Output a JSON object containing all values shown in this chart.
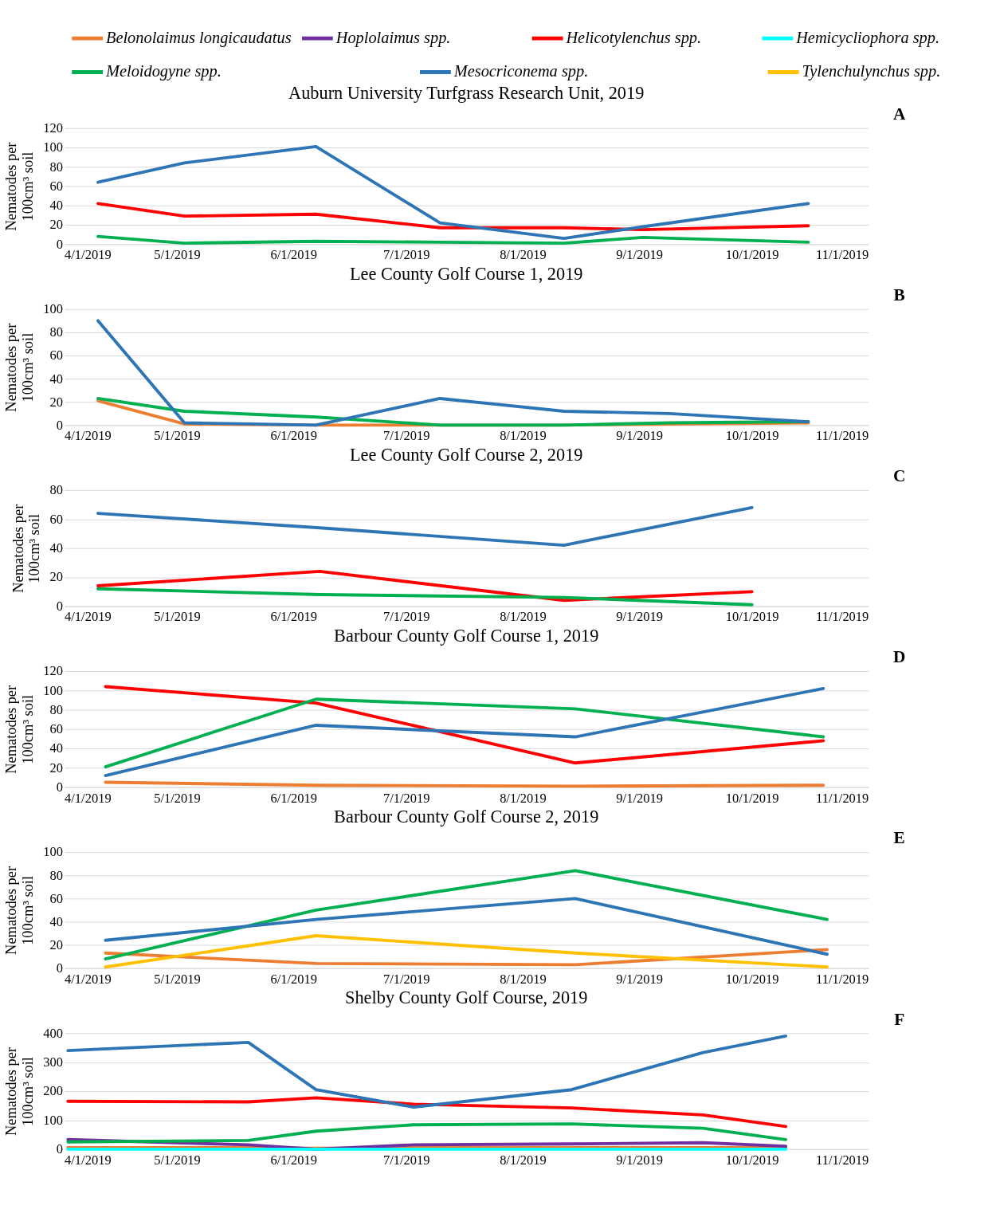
{
  "chart_data": [
    {
      "type": "line",
      "title": "Auburn University Turfgrass Research Unit, 2019",
      "ylabel": "Nematodes per 100cm³ soil",
      "annotations": [
        "A"
      ],
      "legend": "top",
      "grid": "y",
      "xlim": [
        "2019-04-01",
        "2019-11-01"
      ],
      "xticks": [
        {
          "value": "2019-04-01",
          "label": "4/1/2019"
        },
        {
          "value": "2019-05-01",
          "label": "5/1/2019"
        },
        {
          "value": "2019-06-01",
          "label": "6/1/2019"
        },
        {
          "value": "2019-07-01",
          "label": "7/1/2019"
        },
        {
          "value": "2019-08-01",
          "label": "8/1/2019"
        },
        {
          "value": "2019-09-01",
          "label": "9/1/2019"
        },
        {
          "value": "2019-10-01",
          "label": "10/1/2019"
        },
        {
          "value": "2019-11-01",
          "label": "11/1/2019"
        }
      ],
      "ylim": [
        0,
        120
      ],
      "yticks": [
        0,
        20,
        40,
        60,
        80,
        100,
        120
      ],
      "x": [
        "2019-04-10",
        "2019-05-03",
        "2019-06-07",
        "2019-07-10",
        "2019-08-12",
        "2019-09-02",
        "2019-10-16"
      ],
      "series": [
        {
          "name": "Helicotylenchus spp.",
          "color": "#ff0000",
          "values": [
            42,
            29,
            31,
            17,
            17,
            15,
            19
          ]
        },
        {
          "name": "Meloidogyne spp.",
          "color": "#00b050",
          "values": [
            8,
            1,
            3,
            2,
            1,
            7,
            2
          ]
        },
        {
          "name": "Mesocriconema spp.",
          "color": "#2e75b6",
          "values": [
            64,
            84,
            101,
            22,
            6,
            18,
            42
          ]
        }
      ]
    },
    {
      "type": "line",
      "title": "Lee County Golf Course 1, 2019",
      "ylabel": "Nematodes per 100cm³ soil",
      "annotations": [
        "B"
      ],
      "legend": "top",
      "grid": "y",
      "xlim": [
        "2019-04-01",
        "2019-11-01"
      ],
      "xticks": [
        {
          "value": "2019-04-01",
          "label": "4/1/2019"
        },
        {
          "value": "2019-05-01",
          "label": "5/1/2019"
        },
        {
          "value": "2019-06-01",
          "label": "6/1/2019"
        },
        {
          "value": "2019-07-01",
          "label": "7/1/2019"
        },
        {
          "value": "2019-08-01",
          "label": "8/1/2019"
        },
        {
          "value": "2019-09-01",
          "label": "9/1/2019"
        },
        {
          "value": "2019-10-01",
          "label": "10/1/2019"
        },
        {
          "value": "2019-11-01",
          "label": "11/1/2019"
        }
      ],
      "ylim": [
        0,
        100
      ],
      "yticks": [
        0,
        20,
        40,
        60,
        80,
        100
      ],
      "x": [
        "2019-04-10",
        "2019-05-03",
        "2019-06-07",
        "2019-07-10",
        "2019-08-12",
        "2019-09-09",
        "2019-10-16"
      ],
      "series": [
        {
          "name": "Belonolaimus longicaudatus",
          "color": "#ed7d31",
          "values": [
            21,
            1,
            0,
            0,
            0,
            1,
            2
          ]
        },
        {
          "name": "Meloidogyne spp.",
          "color": "#00b050",
          "values": [
            23,
            12,
            7,
            0,
            0,
            2,
            3
          ]
        },
        {
          "name": "Mesocriconema spp.",
          "color": "#2e75b6",
          "values": [
            90,
            2,
            0,
            23,
            12,
            10,
            3
          ]
        }
      ]
    },
    {
      "type": "line",
      "title": "Lee County Golf Course 2, 2019",
      "ylabel": "Nematodes per 100cm³ soil",
      "annotations": [
        "C"
      ],
      "legend": "top",
      "grid": "y",
      "xlim": [
        "2019-04-01",
        "2019-11-01"
      ],
      "xticks": [
        {
          "value": "2019-04-01",
          "label": "4/1/2019"
        },
        {
          "value": "2019-05-01",
          "label": "5/1/2019"
        },
        {
          "value": "2019-06-01",
          "label": "6/1/2019"
        },
        {
          "value": "2019-07-01",
          "label": "7/1/2019"
        },
        {
          "value": "2019-08-01",
          "label": "8/1/2019"
        },
        {
          "value": "2019-09-01",
          "label": "9/1/2019"
        },
        {
          "value": "2019-10-01",
          "label": "10/1/2019"
        },
        {
          "value": "2019-11-01",
          "label": "11/1/2019"
        }
      ],
      "ylim": [
        0,
        80
      ],
      "yticks": [
        0,
        20,
        40,
        60,
        80
      ],
      "x": [
        "2019-04-10",
        "2019-06-08",
        "2019-08-12",
        "2019-10-01"
      ],
      "series": [
        {
          "name": "Helicotylenchus spp.",
          "color": "#ff0000",
          "values": [
            14,
            24,
            4,
            10
          ]
        },
        {
          "name": "Meloidogyne spp.",
          "color": "#00b050",
          "values": [
            12,
            8,
            6,
            1
          ]
        },
        {
          "name": "Mesocriconema spp.",
          "color": "#2e75b6",
          "values": [
            64,
            54,
            42,
            68
          ]
        }
      ]
    },
    {
      "type": "line",
      "title": "Barbour County Golf Course 1, 2019",
      "ylabel": "Nematodes per 100cm³ soil",
      "annotations": [
        "D"
      ],
      "legend": "top",
      "grid": "y",
      "xlim": [
        "2019-04-01",
        "2019-11-01"
      ],
      "xticks": [
        {
          "value": "2019-04-01",
          "label": "4/1/2019"
        },
        {
          "value": "2019-05-01",
          "label": "5/1/2019"
        },
        {
          "value": "2019-06-01",
          "label": "6/1/2019"
        },
        {
          "value": "2019-07-01",
          "label": "7/1/2019"
        },
        {
          "value": "2019-08-01",
          "label": "8/1/2019"
        },
        {
          "value": "2019-09-01",
          "label": "9/1/2019"
        },
        {
          "value": "2019-10-01",
          "label": "10/1/2019"
        },
        {
          "value": "2019-11-01",
          "label": "11/1/2019"
        }
      ],
      "ylim": [
        0,
        120
      ],
      "yticks": [
        0,
        20,
        40,
        60,
        80,
        100,
        120
      ],
      "x": [
        "2019-04-12",
        "2019-06-07",
        "2019-08-15",
        "2019-10-20"
      ],
      "series": [
        {
          "name": "Belonolaimus longicaudatus",
          "color": "#ed7d31",
          "values": [
            5,
            2,
            1,
            2
          ]
        },
        {
          "name": "Helicotylenchus spp.",
          "color": "#ff0000",
          "values": [
            104,
            87,
            25,
            48
          ]
        },
        {
          "name": "Meloidogyne spp.",
          "color": "#00b050",
          "values": [
            21,
            91,
            81,
            52
          ]
        },
        {
          "name": "Mesocriconema spp.",
          "color": "#2e75b6",
          "values": [
            12,
            64,
            52,
            102
          ]
        }
      ]
    },
    {
      "type": "line",
      "title": "Barbour County Golf Course 2, 2019",
      "ylabel": "Nematodes per 100cm³ soil",
      "annotations": [
        "E"
      ],
      "legend": "top",
      "grid": "y",
      "xlim": [
        "2019-04-01",
        "2019-11-01"
      ],
      "xticks": [
        {
          "value": "2019-04-01",
          "label": "4/1/2019"
        },
        {
          "value": "2019-05-01",
          "label": "5/1/2019"
        },
        {
          "value": "2019-06-01",
          "label": "6/1/2019"
        },
        {
          "value": "2019-07-01",
          "label": "7/1/2019"
        },
        {
          "value": "2019-08-01",
          "label": "8/1/2019"
        },
        {
          "value": "2019-09-01",
          "label": "9/1/2019"
        },
        {
          "value": "2019-10-01",
          "label": "10/1/2019"
        },
        {
          "value": "2019-11-01",
          "label": "11/1/2019"
        }
      ],
      "ylim": [
        0,
        100
      ],
      "yticks": [
        0,
        20,
        40,
        60,
        80,
        100
      ],
      "x": [
        "2019-04-12",
        "2019-06-07",
        "2019-08-15",
        "2019-10-21"
      ],
      "series": [
        {
          "name": "Belonolaimus longicaudatus",
          "color": "#ed7d31",
          "values": [
            13,
            4,
            3,
            16
          ]
        },
        {
          "name": "Meloidogyne spp.",
          "color": "#00b050",
          "values": [
            8,
            50,
            84,
            42
          ]
        },
        {
          "name": "Mesocriconema spp.",
          "color": "#2e75b6",
          "values": [
            24,
            42,
            60,
            12
          ]
        },
        {
          "name": "Tylenchulynchus spp.",
          "color": "#ffc000",
          "values": [
            1,
            28,
            13,
            1
          ]
        }
      ]
    },
    {
      "type": "line",
      "title": "Shelby County Golf Course, 2019",
      "ylabel": "Nematodes per 100cm³ soil",
      "annotations": [
        "F"
      ],
      "legend": "top",
      "grid": "y",
      "xlim": [
        "2019-04-01",
        "2019-11-01"
      ],
      "xticks": [
        {
          "value": "2019-04-01",
          "label": "4/1/2019"
        },
        {
          "value": "2019-05-01",
          "label": "5/1/2019"
        },
        {
          "value": "2019-06-01",
          "label": "6/1/2019"
        },
        {
          "value": "2019-07-01",
          "label": "7/1/2019"
        },
        {
          "value": "2019-08-01",
          "label": "8/1/2019"
        },
        {
          "value": "2019-09-01",
          "label": "9/1/2019"
        },
        {
          "value": "2019-10-01",
          "label": "10/1/2019"
        },
        {
          "value": "2019-11-01",
          "label": "11/1/2019"
        }
      ],
      "ylim": [
        0,
        400
      ],
      "yticks": [
        0,
        100,
        200,
        300,
        400
      ],
      "x": [
        "2019-04-02",
        "2019-05-20",
        "2019-06-07",
        "2019-07-03",
        "2019-08-14",
        "2019-09-18",
        "2019-10-10"
      ],
      "series": [
        {
          "name": "Belonolaimus longicaudatus",
          "color": "#ed7d31",
          "values": [
            5,
            5,
            3,
            5,
            5,
            5,
            5
          ]
        },
        {
          "name": "Hoplolaimus spp.",
          "color": "#7030a0",
          "values": [
            33,
            15,
            0,
            15,
            18,
            22,
            10
          ]
        },
        {
          "name": "Helicotylenchus spp.",
          "color": "#ff0000",
          "values": [
            165,
            163,
            177,
            155,
            142,
            118,
            78
          ]
        },
        {
          "name": "Hemicycliophora spp.",
          "color": "#00ffff",
          "values": [
            0,
            0,
            0,
            0,
            0,
            0,
            0
          ]
        },
        {
          "name": "Meloidogyne spp.",
          "color": "#00b050",
          "values": [
            25,
            30,
            62,
            84,
            87,
            72,
            33
          ]
        },
        {
          "name": "Mesocriconema spp.",
          "color": "#2e75b6",
          "values": [
            340,
            368,
            205,
            145,
            205,
            333,
            390
          ]
        }
      ]
    }
  ]
}
